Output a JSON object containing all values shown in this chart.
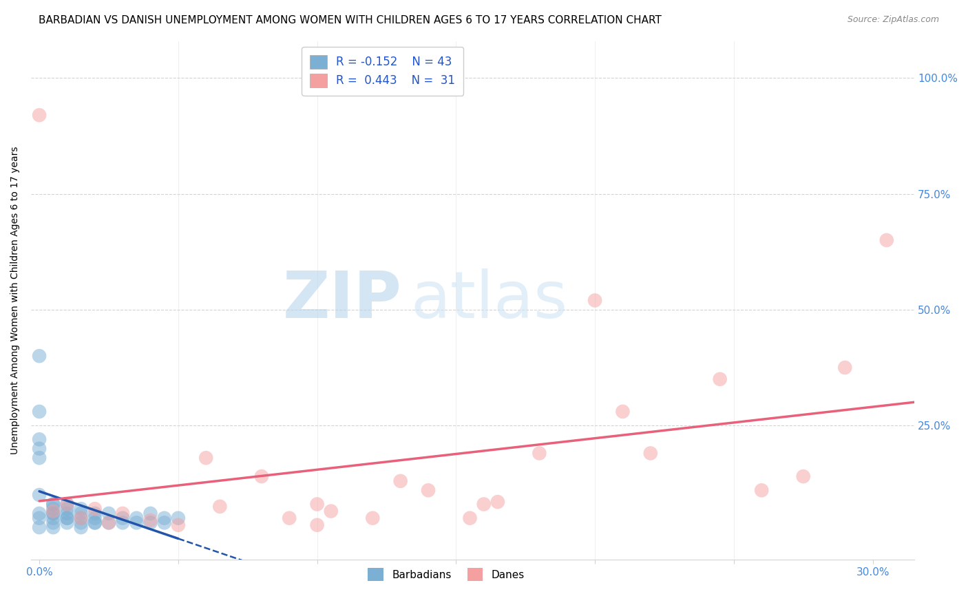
{
  "title": "BARBADIAN VS DANISH UNEMPLOYMENT AMONG WOMEN WITH CHILDREN AGES 6 TO 17 YEARS CORRELATION CHART",
  "source": "Source: ZipAtlas.com",
  "ylabel": "Unemployment Among Women with Children Ages 6 to 17 years",
  "ytick_labels_right": [
    "100.0%",
    "75.0%",
    "50.0%",
    "25.0%"
  ],
  "ytick_positions_right": [
    1.0,
    0.75,
    0.5,
    0.25
  ],
  "xlim": [
    -0.003,
    0.315
  ],
  "ylim": [
    -0.04,
    1.08
  ],
  "legend_R_blue": "R = -0.152",
  "legend_N_blue": "N = 43",
  "legend_R_pink": "R =  0.443",
  "legend_N_pink": "N =  31",
  "color_blue": "#7BAFD4",
  "color_pink": "#F4A0A0",
  "color_blue_line": "#2255AA",
  "color_pink_line": "#E8607A",
  "watermark_zip": "ZIP",
  "watermark_atlas": "atlas",
  "title_fontsize": 11,
  "label_fontsize": 10,
  "barbadian_x": [
    0.0,
    0.0,
    0.0,
    0.0,
    0.0,
    0.0,
    0.0,
    0.0,
    0.005,
    0.005,
    0.005,
    0.005,
    0.005,
    0.005,
    0.01,
    0.01,
    0.01,
    0.01,
    0.01,
    0.015,
    0.015,
    0.015,
    0.015,
    0.02,
    0.02,
    0.02,
    0.025,
    0.025,
    0.03,
    0.03,
    0.035,
    0.035,
    0.04,
    0.04,
    0.045,
    0.045,
    0.05,
    0.005,
    0.01,
    0.015,
    0.02,
    0.0,
    0.005
  ],
  "barbadian_y": [
    0.4,
    0.28,
    0.22,
    0.2,
    0.1,
    0.06,
    0.05,
    0.03,
    0.08,
    0.07,
    0.06,
    0.05,
    0.04,
    0.03,
    0.08,
    0.07,
    0.06,
    0.05,
    0.04,
    0.07,
    0.06,
    0.05,
    0.04,
    0.06,
    0.05,
    0.04,
    0.06,
    0.04,
    0.05,
    0.04,
    0.05,
    0.04,
    0.06,
    0.04,
    0.05,
    0.04,
    0.05,
    0.08,
    0.05,
    0.03,
    0.04,
    0.18,
    0.06
  ],
  "danish_x": [
    0.0,
    0.005,
    0.01,
    0.015,
    0.02,
    0.025,
    0.03,
    0.04,
    0.05,
    0.06,
    0.065,
    0.08,
    0.09,
    0.1,
    0.1,
    0.105,
    0.12,
    0.13,
    0.14,
    0.155,
    0.16,
    0.165,
    0.18,
    0.2,
    0.21,
    0.22,
    0.245,
    0.26,
    0.275,
    0.29,
    0.305
  ],
  "danish_y": [
    0.92,
    0.065,
    0.08,
    0.05,
    0.07,
    0.04,
    0.06,
    0.045,
    0.035,
    0.18,
    0.075,
    0.14,
    0.05,
    0.08,
    0.035,
    0.065,
    0.05,
    0.13,
    0.11,
    0.05,
    0.08,
    0.085,
    0.19,
    0.52,
    0.28,
    0.19,
    0.35,
    0.11,
    0.14,
    0.375,
    0.65
  ]
}
